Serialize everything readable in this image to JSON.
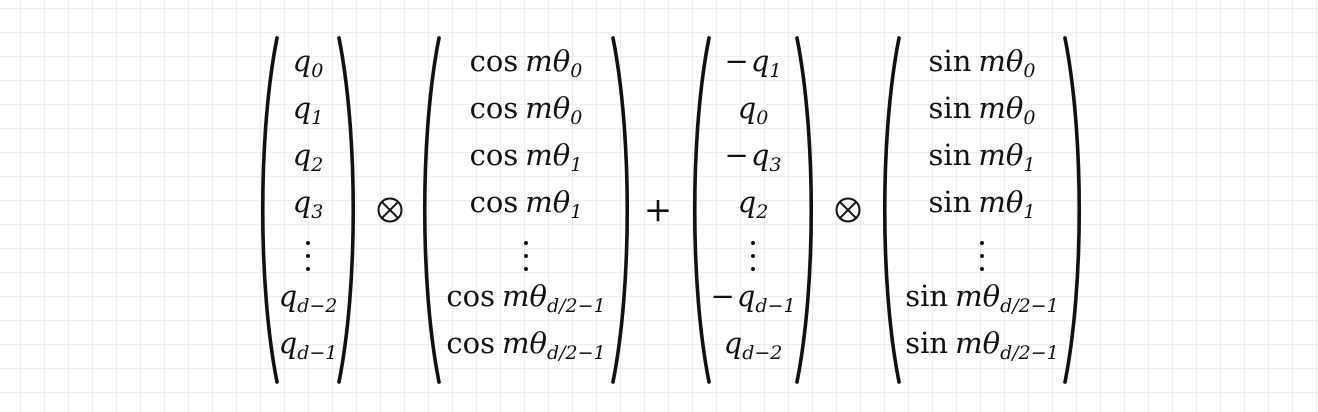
{
  "operators": {
    "otimes": "⊗",
    "plus": "+"
  },
  "vec_q": [
    {
      "main": "q",
      "sub": "0"
    },
    {
      "main": "q",
      "sub": "1"
    },
    {
      "main": "q",
      "sub": "2"
    },
    {
      "main": "q",
      "sub": "3"
    },
    {
      "dots": true
    },
    {
      "main": "q",
      "sub": "d−2"
    },
    {
      "main": "q",
      "sub": "d−1"
    }
  ],
  "vec_cos": [
    {
      "fn": "cos",
      "main": "mθ",
      "sub": "0"
    },
    {
      "fn": "cos",
      "main": "mθ",
      "sub": "0"
    },
    {
      "fn": "cos",
      "main": "mθ",
      "sub": "1"
    },
    {
      "fn": "cos",
      "main": "mθ",
      "sub": "1"
    },
    {
      "dots": true
    },
    {
      "fn": "cos",
      "main": "mθ",
      "sub": "d/2−1"
    },
    {
      "fn": "cos",
      "main": "mθ",
      "sub": "d/2−1"
    }
  ],
  "vec_qrot": [
    {
      "sign": "−",
      "main": "q",
      "sub": "1"
    },
    {
      "main": "q",
      "sub": "0"
    },
    {
      "sign": "−",
      "main": "q",
      "sub": "3"
    },
    {
      "main": "q",
      "sub": "2"
    },
    {
      "dots": true
    },
    {
      "sign": "−",
      "main": "q",
      "sub": "d−1"
    },
    {
      "main": "q",
      "sub": "d−2"
    }
  ],
  "vec_sin": [
    {
      "fn": "sin",
      "main": "mθ",
      "sub": "0"
    },
    {
      "fn": "sin",
      "main": "mθ",
      "sub": "0"
    },
    {
      "fn": "sin",
      "main": "mθ",
      "sub": "1"
    },
    {
      "fn": "sin",
      "main": "mθ",
      "sub": "1"
    },
    {
      "dots": true
    },
    {
      "fn": "sin",
      "main": "mθ",
      "sub": "d/2−1"
    },
    {
      "fn": "sin",
      "main": "mθ",
      "sub": "d/2−1"
    }
  ]
}
